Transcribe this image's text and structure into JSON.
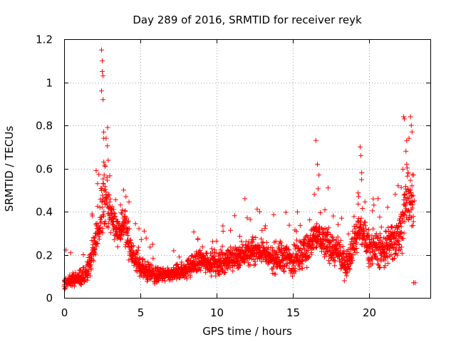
{
  "chart_data": {
    "type": "scatter",
    "title": "Day 289 of 2016, SRMTID for receiver reyk",
    "xlabel": "GPS time / hours",
    "ylabel": "SRMTID / TECUs",
    "xlim": [
      0,
      24
    ],
    "ylim": [
      0,
      1.2
    ],
    "x_ticks": [
      0,
      5,
      10,
      15,
      20
    ],
    "x_tick_labels": [
      "0",
      "5",
      "10",
      "15",
      "20"
    ],
    "y_ticks": [
      0,
      0.2,
      0.4,
      0.6,
      0.8,
      1.0,
      1.2
    ],
    "y_tick_labels": [
      "0",
      "0.2",
      "0.4",
      "0.6",
      "0.8",
      "1",
      "1.2"
    ],
    "grid": true,
    "marker": "+",
    "series": [
      {
        "name": "SRMTID",
        "color": "#ff0000",
        "envelope": [
          [
            0.0,
            0.03,
            0.1
          ],
          [
            0.5,
            0.05,
            0.12
          ],
          [
            1.0,
            0.04,
            0.14
          ],
          [
            1.3,
            0.02,
            0.16
          ],
          [
            1.7,
            0.08,
            0.24
          ],
          [
            2.0,
            0.12,
            0.35
          ],
          [
            2.3,
            0.18,
            0.5
          ],
          [
            2.5,
            0.25,
            0.7
          ],
          [
            2.8,
            0.28,
            0.6
          ],
          [
            3.2,
            0.25,
            0.45
          ],
          [
            3.6,
            0.22,
            0.4
          ],
          [
            4.0,
            0.2,
            0.48
          ],
          [
            4.3,
            0.15,
            0.35
          ],
          [
            4.7,
            0.08,
            0.25
          ],
          [
            5.0,
            0.06,
            0.22
          ],
          [
            5.5,
            0.05,
            0.18
          ],
          [
            6.0,
            0.05,
            0.16
          ],
          [
            7.0,
            0.06,
            0.15
          ],
          [
            8.0,
            0.07,
            0.2
          ],
          [
            9.0,
            0.1,
            0.25
          ],
          [
            10.0,
            0.08,
            0.24
          ],
          [
            11.0,
            0.1,
            0.26
          ],
          [
            12.0,
            0.12,
            0.3
          ],
          [
            13.0,
            0.14,
            0.3
          ],
          [
            13.5,
            0.1,
            0.25
          ],
          [
            14.0,
            0.08,
            0.3
          ],
          [
            15.0,
            0.08,
            0.28
          ],
          [
            16.0,
            0.12,
            0.35
          ],
          [
            16.5,
            0.18,
            0.4
          ],
          [
            17.0,
            0.15,
            0.38
          ],
          [
            18.0,
            0.1,
            0.3
          ],
          [
            18.5,
            0.06,
            0.24
          ],
          [
            19.0,
            0.15,
            0.4
          ],
          [
            19.5,
            0.2,
            0.45
          ],
          [
            20.0,
            0.12,
            0.35
          ],
          [
            21.0,
            0.1,
            0.35
          ],
          [
            21.5,
            0.12,
            0.4
          ],
          [
            22.0,
            0.15,
            0.45
          ],
          [
            22.5,
            0.3,
            0.65
          ],
          [
            22.9,
            0.2,
            0.6
          ]
        ],
        "peaks": [
          [
            2.45,
            1.15
          ],
          [
            2.5,
            1.1
          ],
          [
            2.5,
            1.05
          ],
          [
            2.55,
            1.03
          ],
          [
            2.45,
            0.96
          ],
          [
            2.55,
            0.92
          ],
          [
            2.6,
            0.74
          ],
          [
            2.75,
            0.74
          ],
          [
            2.85,
            0.79
          ],
          [
            2.6,
            0.63
          ],
          [
            2.7,
            0.61
          ],
          [
            2.1,
            0.59
          ],
          [
            3.9,
            0.5
          ],
          [
            4.05,
            0.47
          ],
          [
            11.85,
            0.46
          ],
          [
            16.5,
            0.73
          ],
          [
            16.6,
            0.62
          ],
          [
            16.7,
            0.57
          ],
          [
            16.4,
            0.48
          ],
          [
            17.3,
            0.51
          ],
          [
            19.4,
            0.7
          ],
          [
            19.45,
            0.66
          ],
          [
            19.5,
            0.58
          ],
          [
            19.3,
            0.47
          ],
          [
            20.3,
            0.43
          ],
          [
            21.2,
            0.42
          ],
          [
            21.7,
            0.48
          ],
          [
            22.25,
            0.84
          ],
          [
            22.3,
            0.83
          ],
          [
            22.7,
            0.84
          ],
          [
            22.75,
            0.8
          ],
          [
            22.8,
            0.77
          ],
          [
            22.6,
            0.74
          ],
          [
            22.4,
            0.68
          ],
          [
            22.45,
            0.62
          ],
          [
            22.55,
            0.58
          ],
          [
            22.9,
            0.57
          ],
          [
            22.95,
            0.45
          ],
          [
            22.9,
            0.07
          ],
          [
            23.0,
            0.07
          ]
        ]
      }
    ]
  }
}
